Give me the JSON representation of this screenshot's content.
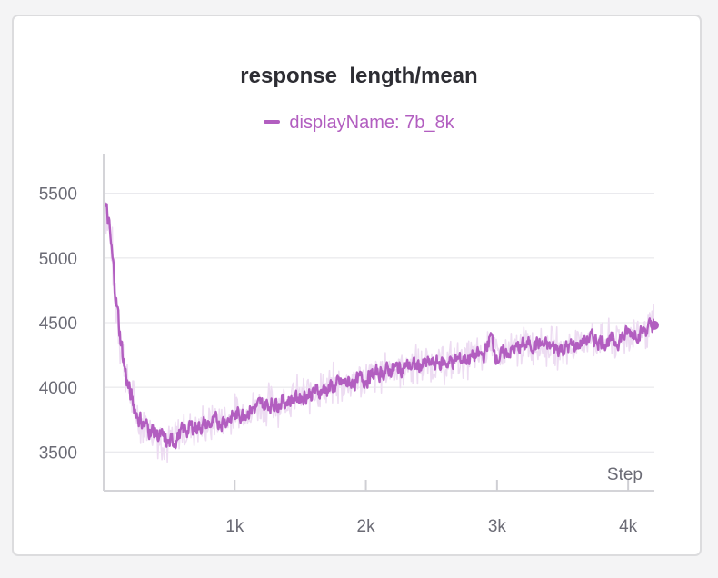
{
  "chart_data": {
    "type": "line",
    "title": "response_length/mean",
    "legend": {
      "entries": [
        "displayName: 7b_8k"
      ],
      "placement": "top-center"
    },
    "xlabel": "Step",
    "ylabel": "",
    "xlim": [
      0,
      4200
    ],
    "ylim": [
      3200,
      5800
    ],
    "x_ticks": [
      1000,
      2000,
      3000,
      4000
    ],
    "x_tick_labels": [
      "1k",
      "2k",
      "3k",
      "4k"
    ],
    "y_ticks": [
      3500,
      4000,
      4500,
      5000,
      5500
    ],
    "y_tick_labels": [
      "3500",
      "4000",
      "4500",
      "5000",
      "5500"
    ],
    "grid": "horizontal",
    "colors": {
      "smoothed": "#b25ec0",
      "raw": "#eddcf2"
    },
    "series": [
      {
        "name": "displayName: 7b_8k",
        "x": [
          0,
          40,
          80,
          120,
          160,
          200,
          250,
          300,
          350,
          400,
          450,
          500,
          550,
          600,
          700,
          800,
          900,
          1000,
          1100,
          1200,
          1300,
          1400,
          1500,
          1600,
          1700,
          1800,
          1900,
          2000,
          2100,
          2200,
          2300,
          2400,
          2500,
          2600,
          2700,
          2800,
          2900,
          2950,
          3000,
          3100,
          3200,
          3300,
          3400,
          3500,
          3600,
          3700,
          3800,
          3900,
          4000,
          4100,
          4200
        ],
        "y": [
          5480,
          5250,
          4850,
          4450,
          4150,
          3950,
          3800,
          3720,
          3680,
          3640,
          3600,
          3560,
          3600,
          3660,
          3700,
          3710,
          3740,
          3780,
          3820,
          3860,
          3880,
          3900,
          3930,
          3960,
          3990,
          4020,
          4040,
          4070,
          4110,
          4140,
          4160,
          4170,
          4180,
          4190,
          4210,
          4230,
          4250,
          4400,
          4230,
          4280,
          4320,
          4340,
          4310,
          4300,
          4320,
          4380,
          4360,
          4350,
          4420,
          4430,
          4480
        ],
        "raw_band": [
          220,
          260,
          300,
          280,
          260,
          240,
          230,
          220,
          220,
          220,
          210,
          210,
          200,
          200,
          200,
          200,
          200,
          200,
          200,
          200,
          200,
          200,
          200,
          200,
          200,
          200,
          200,
          200,
          190,
          190,
          190,
          190,
          190,
          190,
          190,
          190,
          190,
          190,
          190,
          190,
          190,
          190,
          190,
          190,
          190,
          190,
          190,
          190,
          190,
          190,
          190
        ]
      }
    ]
  }
}
